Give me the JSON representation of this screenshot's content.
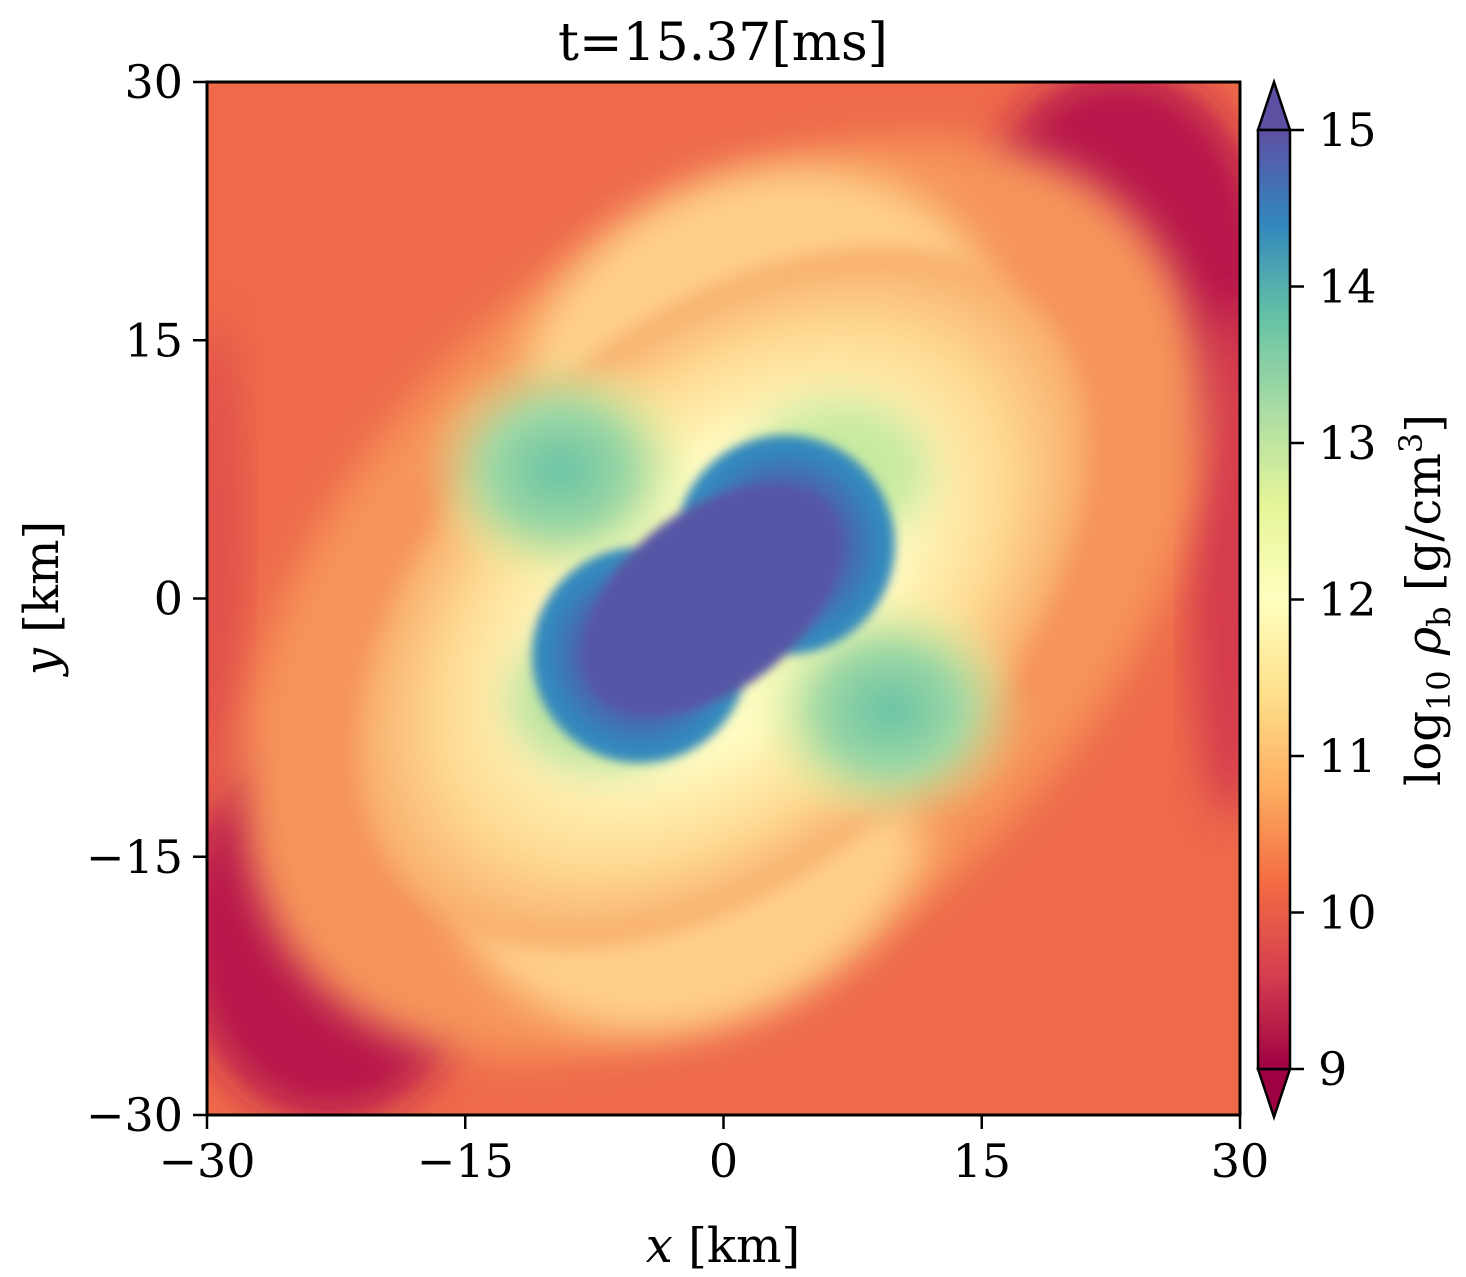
{
  "chart_data": {
    "type": "heatmap",
    "title": "t=15.37[ms]",
    "xlabel": {
      "var": "x",
      "unit": "[km]"
    },
    "ylabel": {
      "var": "y",
      "unit": "[km]"
    },
    "xlim": [
      -30,
      30
    ],
    "ylim": [
      -30,
      30
    ],
    "xticks": [
      -30,
      -15,
      0,
      15,
      30
    ],
    "yticks": [
      -30,
      -15,
      0,
      15,
      30
    ],
    "xtick_labels": [
      "−30",
      "−15",
      "0",
      "15",
      "30"
    ],
    "ytick_labels": [
      "−30",
      "−15",
      "0",
      "15",
      "30"
    ],
    "colorbar": {
      "label": "log10 ρb [g/cm3]",
      "label_parts": {
        "log": "log",
        "log_sub": "10",
        "rho": "ρ",
        "rho_sub": "b",
        "unit_open": "[g/cm",
        "unit_sup": "3",
        "unit_close": "]"
      },
      "range": [
        9,
        15
      ],
      "ticks": [
        9,
        10,
        11,
        12,
        13,
        14,
        15
      ],
      "tick_labels": [
        "9",
        "10",
        "11",
        "12",
        "13",
        "14",
        "15"
      ],
      "extend": "both",
      "colormap": "Spectral",
      "colors": [
        "#9e0142",
        "#d53e4f",
        "#f46d43",
        "#fdae61",
        "#fee08b",
        "#ffffbf",
        "#e6f598",
        "#abdda4",
        "#66c2a5",
        "#3288bd",
        "#5e4fa2"
      ]
    },
    "field_description": {
      "core_max_log10_density": 15,
      "ambient_min_log10_density": 9
    }
  }
}
